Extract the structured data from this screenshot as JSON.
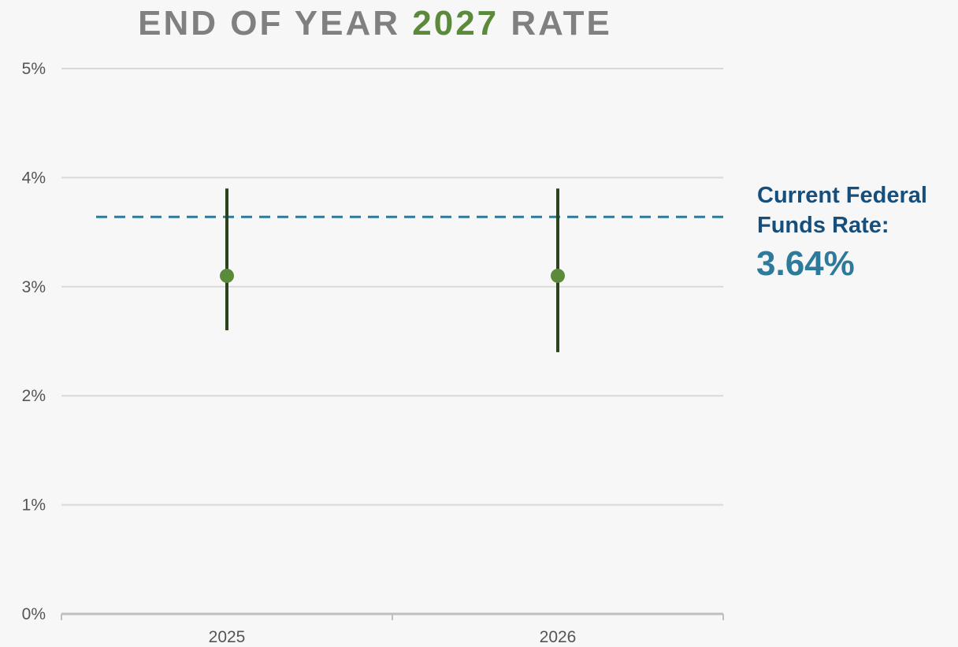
{
  "chart_data": {
    "type": "errorpoint",
    "title": {
      "parts": [
        "END OF YEAR",
        "2027",
        "RATE"
      ],
      "colors": [
        "#808080",
        "#5a8a3a",
        "#808080"
      ]
    },
    "categories": [
      "2025",
      "2026"
    ],
    "series": [
      {
        "color": "#5a8a3a",
        "bar_color": "#2b4420",
        "values": [
          3.1,
          3.1
        ],
        "low": [
          2.6,
          2.4
        ],
        "high": [
          3.9,
          3.9
        ]
      }
    ],
    "ylim": [
      0,
      5
    ],
    "yticks": [
      {
        "value": 0,
        "label": "0%"
      },
      {
        "value": 1,
        "label": "1%"
      },
      {
        "value": 2,
        "label": "2%"
      },
      {
        "value": 3,
        "label": "3%"
      },
      {
        "value": 4,
        "label": "4%"
      },
      {
        "value": 5,
        "label": "5%"
      }
    ],
    "grid": true,
    "reference_line": {
      "value": 3.64,
      "label": "3.64%",
      "color": "#2e7a9a",
      "text": [
        "Current Federal",
        "Funds Rate:"
      ],
      "text_color": "#174f7c"
    }
  }
}
